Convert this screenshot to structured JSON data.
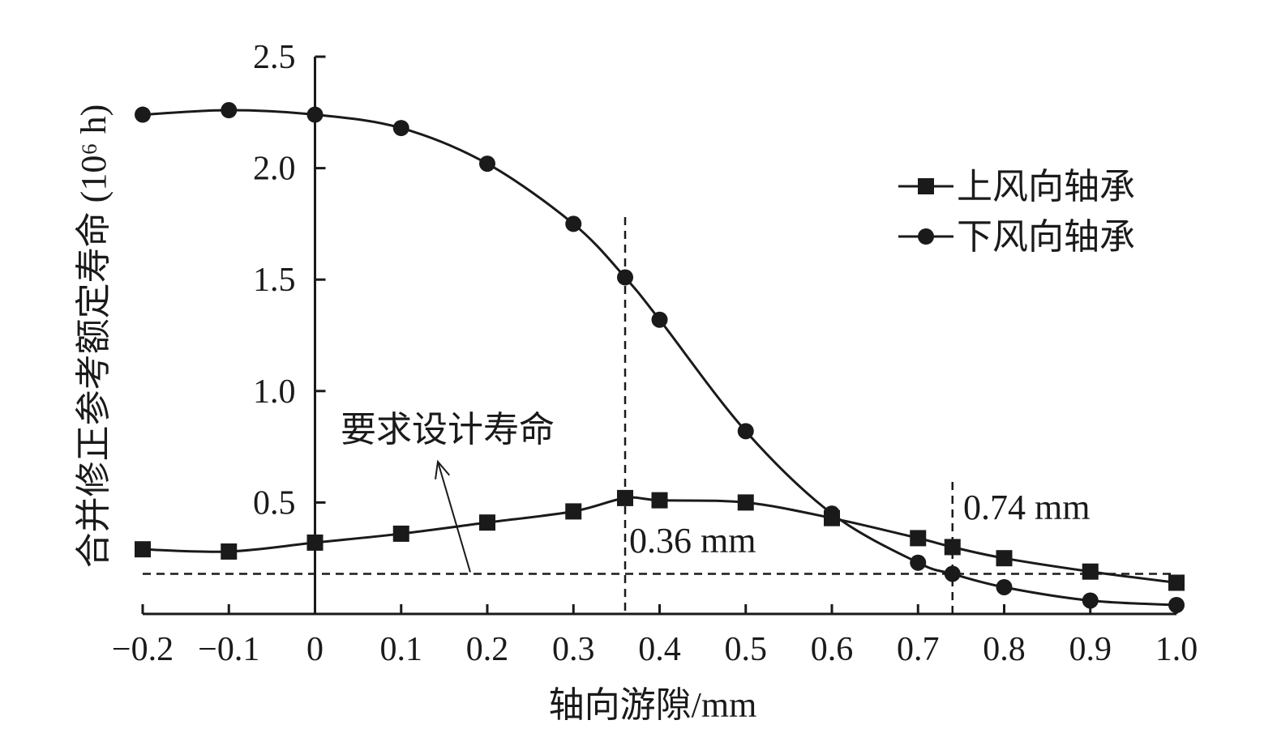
{
  "chart_data": {
    "type": "line",
    "title": "",
    "xlabel": "轴向游隙/mm",
    "ylabel": "合并修正参考额定寿命 (10⁶ h)",
    "xlim": [
      -0.2,
      1.0
    ],
    "ylim": [
      0,
      2.5
    ],
    "x_ticks": [
      "−0.2",
      "−0.1",
      "0",
      "0.1",
      "0.2",
      "0.3",
      "0.4",
      "0.5",
      "0.6",
      "0.7",
      "0.8",
      "0.9",
      "1.0"
    ],
    "y_ticks": [
      "0.5",
      "1.0",
      "1.5",
      "2.0",
      "2.5"
    ],
    "legend_position": "top-right",
    "series": [
      {
        "name": "上风向轴承",
        "marker": "square",
        "color": "#1a1a1a",
        "x": [
          -0.2,
          -0.1,
          0,
          0.1,
          0.2,
          0.3,
          0.36,
          0.4,
          0.5,
          0.6,
          0.7,
          0.74,
          0.8,
          0.9,
          1.0
        ],
        "y": [
          0.29,
          0.28,
          0.32,
          0.36,
          0.41,
          0.46,
          0.52,
          0.51,
          0.5,
          0.43,
          0.34,
          0.3,
          0.25,
          0.19,
          0.14
        ]
      },
      {
        "name": "下风向轴承",
        "marker": "circle",
        "color": "#1a1a1a",
        "x": [
          -0.2,
          -0.1,
          0,
          0.1,
          0.2,
          0.3,
          0.36,
          0.4,
          0.5,
          0.6,
          0.7,
          0.74,
          0.8,
          0.9,
          1.0
        ],
        "y": [
          2.24,
          2.26,
          2.24,
          2.18,
          2.02,
          1.75,
          1.51,
          1.32,
          0.82,
          0.45,
          0.23,
          0.18,
          0.12,
          0.06,
          0.04
        ]
      }
    ],
    "reference_line": {
      "y": 0.18,
      "label": "要求设计寿命"
    },
    "markers": [
      {
        "x": 0.36,
        "label": "0.36 mm"
      },
      {
        "x": 0.74,
        "label": "0.74 mm"
      }
    ]
  }
}
